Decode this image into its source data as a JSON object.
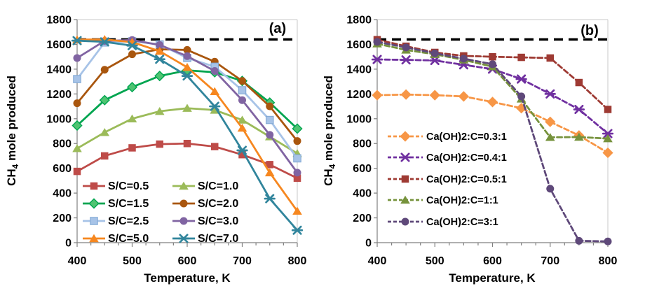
{
  "style": {
    "background": "#FFFFFF",
    "axis_color": "#808080",
    "border_color": "#C8C8C8",
    "max_line_color": "#000000",
    "text_color": "#000000"
  },
  "chart_data": [
    {
      "type": "line",
      "panel_label": "(a)",
      "xlabel": "Temperature, K",
      "ylabel": "CH4 mole produced",
      "ylabel_parts": {
        "pre": "CH",
        "sub": "4",
        "post": " mole produced"
      },
      "xlim": [
        400,
        800
      ],
      "ylim": [
        0,
        1800
      ],
      "ytick_step": 200,
      "xtick_major_step": 100,
      "xtick_minor_step": 25,
      "grid": false,
      "legend_position": "inside-bottom-left",
      "legend_columns": 2,
      "line_dash": "solid",
      "max_line": {
        "value": 1640,
        "style": "dashed",
        "color": "#000000"
      },
      "x": [
        400,
        450,
        500,
        550,
        600,
        650,
        700,
        750,
        800
      ],
      "series": [
        {
          "name": "S/C=0.5",
          "marker": "square",
          "color": "#BE4B48",
          "values": [
            575,
            700,
            765,
            795,
            800,
            775,
            710,
            630,
            520
          ]
        },
        {
          "name": "S/C=1.0",
          "marker": "triangle",
          "color": "#9BBB59",
          "values": [
            760,
            890,
            1000,
            1060,
            1085,
            1070,
            990,
            855,
            720
          ]
        },
        {
          "name": "S/C=1.5",
          "marker": "diamond",
          "color": "#00A550",
          "marker_fill": "#4FC472",
          "values": [
            945,
            1150,
            1255,
            1345,
            1390,
            1375,
            1305,
            1130,
            920
          ]
        },
        {
          "name": "S/C=2.0",
          "marker": "circle",
          "color": "#A9560E",
          "values": [
            1125,
            1395,
            1520,
            1560,
            1555,
            1460,
            1305,
            1100,
            820
          ]
        },
        {
          "name": "S/C=2.5",
          "marker": "square",
          "color": "#A7C3E7",
          "marker_stroke": "#7DA5D3",
          "values": [
            1320,
            1615,
            1625,
            1600,
            1490,
            1420,
            1230,
            990,
            680
          ]
        },
        {
          "name": "S/C=3.0",
          "marker": "circle",
          "color": "#8064A2",
          "values": [
            1490,
            1628,
            1635,
            1595,
            1505,
            1385,
            1150,
            870,
            565
          ]
        },
        {
          "name": "S/C=5.0",
          "marker": "triangle",
          "color": "#F6871F",
          "values": [
            1638,
            1640,
            1618,
            1545,
            1415,
            1220,
            925,
            565,
            255
          ]
        },
        {
          "name": "S/C=7.0",
          "marker": "asterisk",
          "color": "#31859C",
          "values": [
            1630,
            1620,
            1590,
            1480,
            1345,
            1100,
            745,
            355,
            100
          ]
        }
      ]
    },
    {
      "type": "line",
      "panel_label": "(b)",
      "xlabel": "Temperature, K",
      "ylabel": "CH4 mole produced",
      "ylabel_parts": {
        "pre": "CH",
        "sub": "4",
        "post": " mole produced"
      },
      "xlim": [
        400,
        800
      ],
      "ylim": [
        0,
        1800
      ],
      "ytick_step": 200,
      "xtick_major_step": 100,
      "xtick_minor_step": 25,
      "grid": false,
      "legend_position": "inside-middle-left",
      "legend_columns": 1,
      "line_dash": "dashed",
      "max_line": {
        "value": 1640,
        "style": "dashed",
        "color": "#000000"
      },
      "x": [
        400,
        450,
        500,
        550,
        600,
        650,
        700,
        750,
        800
      ],
      "series": [
        {
          "name": "Ca(OH)2:C=0.3:1",
          "marker": "diamond",
          "color": "#F79646",
          "values": [
            1190,
            1195,
            1190,
            1180,
            1135,
            1085,
            975,
            865,
            725
          ]
        },
        {
          "name": "Ca(OH)2:C=0.4:1",
          "marker": "asterisk",
          "color": "#7030A0",
          "values": [
            1478,
            1475,
            1470,
            1435,
            1400,
            1320,
            1200,
            1075,
            880
          ]
        },
        {
          "name": "Ca(OH)2:C=0.5:1",
          "marker": "square",
          "color": "#9E3A33",
          "values": [
            1638,
            1585,
            1535,
            1507,
            1500,
            1495,
            1490,
            1292,
            1075
          ]
        },
        {
          "name": "Ca(OH)2:C=1:1",
          "marker": "triangle",
          "color": "#76923C",
          "values": [
            1605,
            1555,
            1520,
            1475,
            1420,
            1160,
            850,
            852,
            840
          ]
        },
        {
          "name": "Ca(OH)2:C=3:1",
          "marker": "circle",
          "color": "#5F497A",
          "values": [
            1620,
            1575,
            1528,
            1485,
            1440,
            1180,
            435,
            15,
            10
          ]
        }
      ]
    }
  ]
}
